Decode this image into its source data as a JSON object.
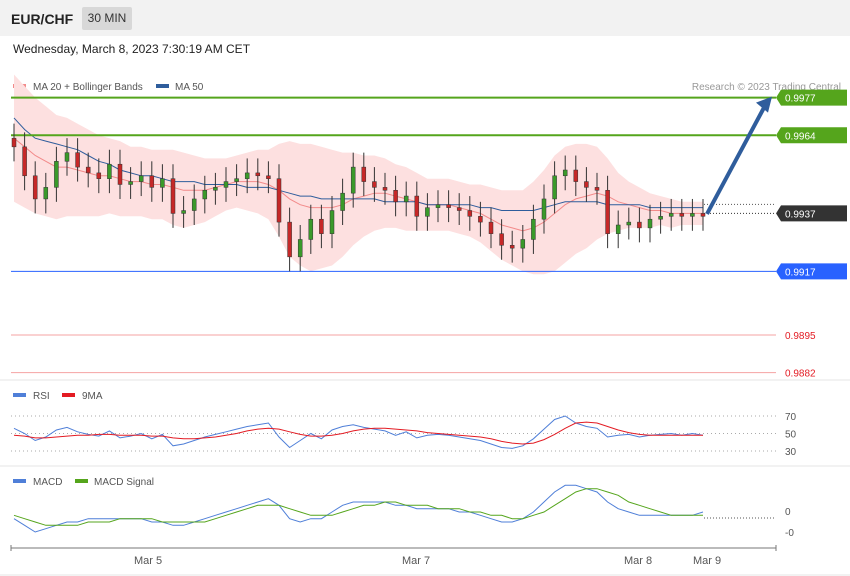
{
  "header": {
    "symbol": "EUR/CHF",
    "timeframe": "30 MIN",
    "datetime": "Wednesday, March 8, 2023 7:30:19 AM CET"
  },
  "legend": {
    "ma20_label": "MA 20 + Bollinger Bands",
    "ma50_label": "MA 50",
    "credit": "Research © 2023 Trading Central",
    "ma20_color": "#f28a8a",
    "ma50_color": "#2f5d9c"
  },
  "levels": [
    {
      "value": "0.9977",
      "kind": "resistance",
      "color": "#55a51c"
    },
    {
      "value": "0.9964",
      "kind": "resistance",
      "color": "#55a51c"
    },
    {
      "value": "0.9937",
      "kind": "current",
      "color": "#333333"
    },
    {
      "value": "0.9917",
      "kind": "pivot",
      "color": "#2962ff"
    },
    {
      "value": "0.9895",
      "kind": "support",
      "color": "#e31b23"
    },
    {
      "value": "0.9882",
      "kind": "support",
      "color": "#e31b23"
    }
  ],
  "rsi_panel": {
    "rsi_label": "RSI",
    "ma_label": "9MA",
    "rsi_color": "#4f7fd8",
    "ma_color": "#e31b23",
    "ticks": [
      "70",
      "50",
      "30"
    ]
  },
  "macd_panel": {
    "macd_label": "MACD",
    "signal_label": "MACD Signal",
    "macd_color": "#4f7fd8",
    "signal_color": "#55a51c",
    "ticks": [
      "0",
      "-0"
    ]
  },
  "x_axis": {
    "labels": [
      "Mar 5",
      "Mar 7",
      "Mar 8",
      "Mar 9"
    ]
  },
  "chart_data": {
    "type": "candlestick",
    "symbol": "EUR/CHF",
    "timeframe": "30 MIN",
    "ylim": [
      0.9876,
      0.999
    ],
    "close": [
      0.996,
      0.995,
      0.9942,
      0.9946,
      0.9955,
      0.9958,
      0.9953,
      0.9951,
      0.9949,
      0.9954,
      0.9947,
      0.9948,
      0.995,
      0.9946,
      0.9949,
      0.9937,
      0.9938,
      0.9942,
      0.9945,
      0.9946,
      0.9948,
      0.9949,
      0.9951,
      0.995,
      0.9949,
      0.9934,
      0.9922,
      0.9928,
      0.9935,
      0.993,
      0.9938,
      0.9944,
      0.9953,
      0.9948,
      0.9946,
      0.9945,
      0.9941,
      0.9943,
      0.9936,
      0.9939,
      0.994,
      0.9939,
      0.9938,
      0.9936,
      0.9934,
      0.993,
      0.9926,
      0.9925,
      0.9928,
      0.9935,
      0.9942,
      0.995,
      0.9952,
      0.9948,
      0.9946,
      0.9945,
      0.993,
      0.9933,
      0.9934,
      0.9932,
      0.9935,
      0.9936,
      0.9937,
      0.9936,
      0.9937,
      0.9936
    ],
    "ma50": [
      0.997,
      0.9966,
      0.9963,
      0.9962,
      0.9961,
      0.996,
      0.9959,
      0.9957,
      0.9955,
      0.9954,
      0.9952,
      0.9951,
      0.995,
      0.995,
      0.9949,
      0.9948,
      0.9948,
      0.9948,
      0.9947,
      0.9947,
      0.9947,
      0.9947,
      0.9946,
      0.9946,
      0.9946,
      0.9945,
      0.9944,
      0.9943,
      0.9943,
      0.9942,
      0.9942,
      0.9942,
      0.9942,
      0.9942,
      0.9942,
      0.9941,
      0.9941,
      0.9941,
      0.9941,
      0.994,
      0.994,
      0.994,
      0.994,
      0.994,
      0.9939,
      0.9939,
      0.9938,
      0.9938,
      0.9938,
      0.9938,
      0.9939,
      0.994,
      0.9941,
      0.9941,
      0.9941,
      0.9941,
      0.994,
      0.994,
      0.994,
      0.994,
      0.9939,
      0.9939,
      0.9939,
      0.9939,
      0.9939,
      0.9939
    ],
    "ma20": [
      0.9963,
      0.996,
      0.9957,
      0.9955,
      0.9953,
      0.9953,
      0.9952,
      0.9951,
      0.995,
      0.995,
      0.9949,
      0.9948,
      0.9948,
      0.9947,
      0.9947,
      0.9946,
      0.9945,
      0.9945,
      0.9945,
      0.9946,
      0.9947,
      0.9948,
      0.9948,
      0.9948,
      0.9947,
      0.9945,
      0.9942,
      0.994,
      0.9939,
      0.9939,
      0.9939,
      0.994,
      0.9942,
      0.9943,
      0.9944,
      0.9944,
      0.9943,
      0.9942,
      0.9941,
      0.994,
      0.994,
      0.994,
      0.9939,
      0.9938,
      0.9937,
      0.9935,
      0.9933,
      0.9932,
      0.9931,
      0.9932,
      0.9934,
      0.9937,
      0.994,
      0.9942,
      0.9943,
      0.9944,
      0.9943,
      0.9941,
      0.994,
      0.9939,
      0.9938,
      0.9938,
      0.9937,
      0.9937,
      0.9937,
      0.9937
    ],
    "band_width": [
      0.0022,
      0.0021,
      0.002,
      0.0019,
      0.0018,
      0.0017,
      0.0016,
      0.0015,
      0.0014,
      0.0013,
      0.0013,
      0.0012,
      0.0012,
      0.0012,
      0.0012,
      0.0013,
      0.0013,
      0.0012,
      0.0011,
      0.001,
      0.0009,
      0.0009,
      0.001,
      0.0011,
      0.0012,
      0.0016,
      0.002,
      0.0021,
      0.0022,
      0.0021,
      0.002,
      0.0018,
      0.0016,
      0.0014,
      0.0013,
      0.0012,
      0.0011,
      0.0011,
      0.001,
      0.0009,
      0.0009,
      0.0009,
      0.0009,
      0.0009,
      0.001,
      0.0011,
      0.0012,
      0.0013,
      0.0014,
      0.0016,
      0.0018,
      0.002,
      0.002,
      0.0019,
      0.0018,
      0.0016,
      0.0013,
      0.001,
      0.0008,
      0.0007,
      0.0006,
      0.0005,
      0.0005,
      0.0004,
      0.0004,
      0.0004
    ],
    "projection": {
      "from": 0.9937,
      "to": 0.9977
    },
    "rsi": [
      56,
      50,
      42,
      46,
      54,
      57,
      52,
      49,
      47,
      53,
      45,
      47,
      50,
      44,
      49,
      36,
      38,
      42,
      46,
      49,
      52,
      55,
      58,
      60,
      62,
      46,
      34,
      42,
      50,
      44,
      54,
      58,
      60,
      57,
      55,
      53,
      48,
      52,
      45,
      48,
      49,
      48,
      46,
      44,
      42,
      38,
      34,
      33,
      36,
      44,
      55,
      66,
      70,
      62,
      58,
      56,
      46,
      48,
      49,
      46,
      48,
      49,
      50,
      48,
      50,
      48
    ],
    "rsi_ma": [
      48,
      47,
      45,
      45,
      46,
      47,
      48,
      48,
      49,
      49,
      48,
      48,
      48,
      47,
      47,
      45,
      44,
      44,
      45,
      46,
      48,
      50,
      53,
      55,
      56,
      55,
      52,
      49,
      47,
      47,
      48,
      50,
      53,
      55,
      56,
      56,
      55,
      54,
      53,
      51,
      50,
      49,
      48,
      47,
      46,
      44,
      41,
      39,
      38,
      39,
      43,
      49,
      56,
      62,
      63,
      62,
      58,
      54,
      51,
      49,
      48,
      48,
      48,
      48,
      48,
      48
    ],
    "macd": [
      -0.0002,
      -0.0004,
      -0.0006,
      -0.0005,
      -0.0004,
      -0.0003,
      -0.0003,
      -0.0002,
      -0.0002,
      -0.0002,
      -0.0002,
      -0.0002,
      -0.0002,
      -0.0003,
      -0.0003,
      -0.0004,
      -0.0004,
      -0.0003,
      -0.0002,
      -0.0001,
      0.0,
      0.0001,
      0.0002,
      0.0003,
      0.0004,
      0.0002,
      -0.0002,
      -0.0003,
      -0.0002,
      -0.0002,
      0.0,
      0.0002,
      0.0003,
      0.0003,
      0.0003,
      0.0003,
      0.0002,
      0.0002,
      0.0001,
      0.0001,
      0.0001,
      0.0001,
      0.0,
      0.0,
      -0.0001,
      -0.0002,
      -0.0003,
      -0.0003,
      -0.0002,
      0.0,
      0.0003,
      0.0006,
      0.0008,
      0.0008,
      0.0007,
      0.0006,
      0.0003,
      0.0001,
      0.0,
      -0.0001,
      -0.0001,
      -0.0001,
      -0.0001,
      -0.0001,
      -0.0001,
      0.0
    ],
    "macd_signal": [
      -0.0001,
      -0.0002,
      -0.0003,
      -0.0004,
      -0.0004,
      -0.0004,
      -0.0004,
      -0.0003,
      -0.0003,
      -0.0003,
      -0.0002,
      -0.0002,
      -0.0002,
      -0.0002,
      -0.0003,
      -0.0003,
      -0.0003,
      -0.0003,
      -0.0003,
      -0.0002,
      -0.0001,
      0.0,
      0.0001,
      0.0002,
      0.0002,
      0.0002,
      0.0001,
      0.0,
      -0.0001,
      -0.0001,
      -0.0001,
      0.0,
      0.0001,
      0.0002,
      0.0002,
      0.0003,
      0.0003,
      0.0002,
      0.0002,
      0.0002,
      0.0001,
      0.0001,
      0.0001,
      0.0,
      0.0,
      -0.0001,
      -0.0001,
      -0.0002,
      -0.0002,
      -0.0001,
      0.0,
      0.0002,
      0.0004,
      0.0006,
      0.0007,
      0.0007,
      0.0006,
      0.0005,
      0.0003,
      0.0002,
      0.0001,
      0.0,
      -0.0001,
      -0.0001,
      -0.0001,
      -0.0001
    ]
  }
}
